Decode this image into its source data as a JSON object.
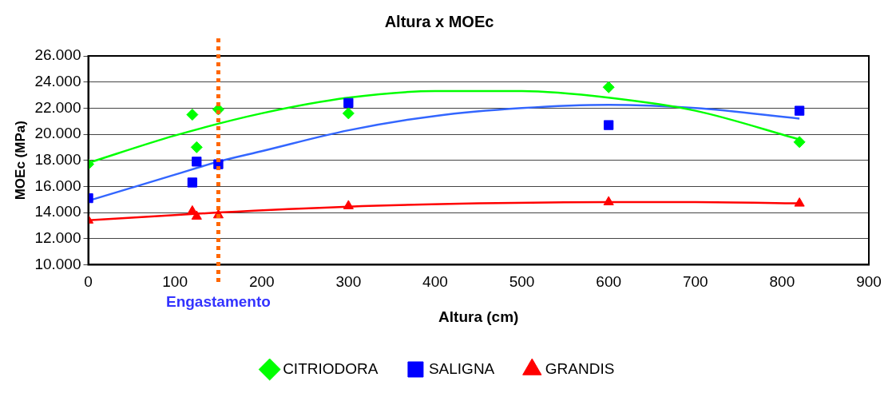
{
  "chart_data": {
    "type": "scatter",
    "title": "Altura x MOEc",
    "xlabel": "Altura (cm)",
    "ylabel": "MOEc (MPa)",
    "xlim": [
      0,
      900
    ],
    "xticks": [
      0,
      100,
      200,
      300,
      400,
      500,
      600,
      700,
      800,
      900
    ],
    "ylim": [
      10000,
      26000
    ],
    "yticks": [
      {
        "value": 10000,
        "label": "10.000"
      },
      {
        "value": 12000,
        "label": "12.000"
      },
      {
        "value": 14000,
        "label": "14.000"
      },
      {
        "value": 16000,
        "label": "16.000"
      },
      {
        "value": 18000,
        "label": "18.000"
      },
      {
        "value": 20000,
        "label": "20.000"
      },
      {
        "value": 22000,
        "label": "22.000"
      },
      {
        "value": 24000,
        "label": "24.000"
      },
      {
        "value": 26000,
        "label": "26.000"
      }
    ],
    "grid": "y",
    "legend": "bottom",
    "ref_lines": [
      {
        "axis": "x",
        "value": 150,
        "label": "Engastamento",
        "color": "#ff6600",
        "line_style": "dotted"
      }
    ],
    "series": [
      {
        "name": "CITRIODORA",
        "type": "scatter",
        "marker": "diamond",
        "color": "#00ff00",
        "x": [
          0,
          120,
          125,
          150,
          300,
          600,
          820
        ],
        "values": [
          17700,
          21500,
          19000,
          21900,
          21600,
          23600,
          19400
        ]
      },
      {
        "name": "SALIGNA",
        "type": "scatter",
        "marker": "square",
        "color": "#0000ff",
        "x": [
          0,
          120,
          125,
          150,
          300,
          600,
          820
        ],
        "values": [
          15100,
          16300,
          17900,
          17700,
          22400,
          20700,
          21800
        ]
      },
      {
        "name": "GRANDIS",
        "type": "scatter",
        "marker": "triangle",
        "color": "#ff0000",
        "x": [
          0,
          120,
          125,
          150,
          300,
          600,
          820
        ],
        "values": [
          13400,
          14100,
          13700,
          13800,
          14500,
          14800,
          14700
        ]
      },
      {
        "type": "line",
        "marker": "none",
        "color": "#00ff00",
        "x": [
          0,
          100,
          200,
          300,
          400,
          500,
          600,
          700,
          820
        ],
        "values": [
          17800,
          19900,
          21600,
          22800,
          23300,
          23300,
          22800,
          21800,
          19600
        ]
      },
      {
        "type": "line",
        "marker": "none",
        "color": "#3366ff",
        "x": [
          0,
          100,
          150,
          200,
          300,
          400,
          500,
          600,
          700,
          820
        ],
        "values": [
          14900,
          16900,
          17900,
          18700,
          20300,
          21400,
          22000,
          22250,
          22000,
          21200
        ]
      },
      {
        "type": "line",
        "marker": "none",
        "color": "#ff0000",
        "x": [
          0,
          150,
          300,
          450,
          600,
          700,
          820
        ],
        "values": [
          13400,
          14000,
          14450,
          14700,
          14800,
          14800,
          14700
        ]
      }
    ]
  }
}
